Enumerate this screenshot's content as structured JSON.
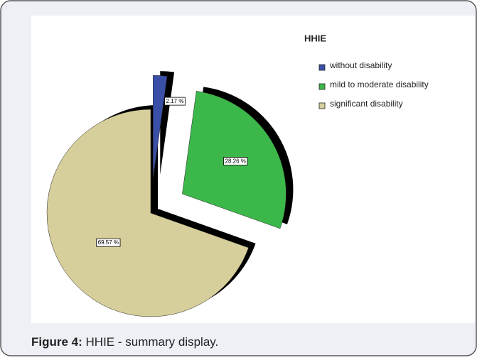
{
  "chart_data": {
    "type": "pie",
    "title": "HHIE",
    "categories": [
      "without disability",
      "mild to moderate disability",
      "significant disability"
    ],
    "values": [
      2.17,
      28.26,
      69.57
    ],
    "value_labels": [
      "2.17 %",
      "28.26 %",
      "69.57 %"
    ],
    "colors": [
      "#3a4fa6",
      "#3cb84a",
      "#d7cf9b"
    ],
    "legend": "top-right"
  },
  "figure": {
    "label": "Figure 4:",
    "text": "HHIE - summary display."
  }
}
